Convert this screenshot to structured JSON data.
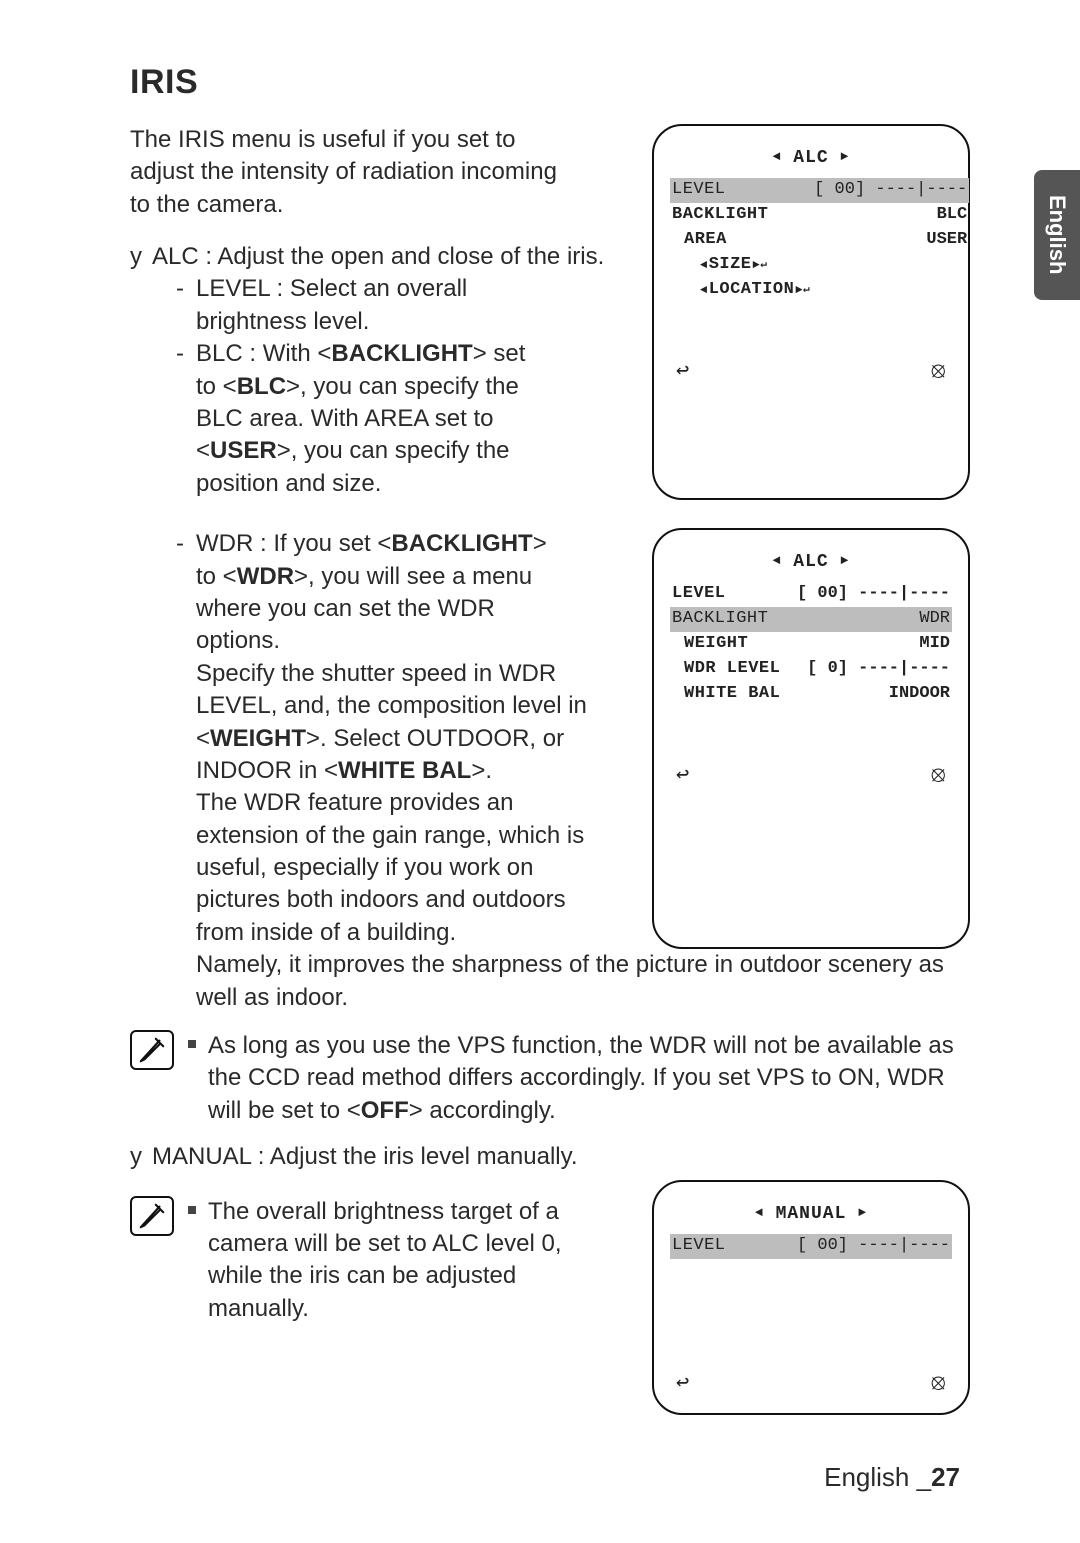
{
  "language_tab": "English",
  "heading": "IRIS",
  "intro": "The IRIS menu is useful if you set to adjust the intensity of radiation incoming to the camera.",
  "alc_bullet": "ALC : Adjust the open and close of the iris.",
  "level_line": "LEVEL : Select an overall brightness level.",
  "blc_line_1": "BLC : With <",
  "blc_bold_1": "BACKLIGHT",
  "blc_line_2": "> set to <",
  "blc_bold_2": "BLC",
  "blc_line_3": ">, you can specify the BLC area. With AREA set to <",
  "blc_bold_3": "USER",
  "blc_line_4": ">, you can specify the position and size.",
  "wdr_line_1": "WDR : If you set <",
  "wdr_bold_1": "BACKLIGHT",
  "wdr_line_2": "> to <",
  "wdr_bold_2": "WDR",
  "wdr_line_3": ">, you will see a menu where you can set the WDR options.",
  "wdr_para_1": "Specify the shutter speed in WDR LEVEL, and, the composition level in <",
  "wdr_bold_3": "WEIGHT",
  "wdr_para_2": ">. Select OUTDOOR, or INDOOR in <",
  "wdr_bold_4": "WHITE BAL",
  "wdr_para_3": ">.",
  "wdr_para_4": "The WDR feature provides an extension of the gain range, which is useful, especially if you work on pictures both indoors and outdoors from inside of a building.",
  "wdr_after": "Namely, it improves the sharpness of the picture in outdoor scenery as well as indoor.",
  "note1_a": "As long as you use the VPS function, the WDR will not be available as the CCD read method differs accordingly. If you set VPS to ON, WDR will be set to <",
  "note1_bold": "OFF",
  "note1_b": "> accordingly.",
  "manual_bullet": "MANUAL : Adjust the iris level manually.",
  "note2": "The overall brightness target of a camera will be set to ALC level 0, while the iris can be adjusted manually.",
  "footer_lang": "English ",
  "footer_page": "_",
  "footer_num": "27",
  "osd1": {
    "title": "ALC",
    "rows": [
      {
        "l": "LEVEL",
        "r": "[  00] ----|----",
        "sel": true,
        "indent": 0,
        "outline": false
      },
      {
        "l": "BACKLIGHT",
        "r": "BLC",
        "sel": false,
        "indent": 0,
        "outline": true
      },
      {
        "l": "AREA",
        "r": "USER",
        "sel": false,
        "indent": 1,
        "outline": true
      },
      {
        "l": "SIZE",
        "r": "",
        "sel": false,
        "indent": 2,
        "outline": true,
        "arrows": true,
        "tail": true
      },
      {
        "l": "LOCATION",
        "r": "",
        "sel": false,
        "indent": 2,
        "outline": true,
        "arrows": true,
        "tail": true
      }
    ]
  },
  "osd2": {
    "title": "ALC",
    "rows": [
      {
        "l": "LEVEL",
        "r": "[  00] ----|----",
        "sel": false,
        "indent": 0,
        "outline": true,
        "slider_outline": true
      },
      {
        "l": "BACKLIGHT",
        "r": "WDR",
        "sel": true,
        "indent": 0,
        "outline": false
      },
      {
        "l": "WEIGHT",
        "r": "MID",
        "sel": false,
        "indent": 1,
        "outline": true
      },
      {
        "l": "WDR LEVEL",
        "r": "[  0] ----|----",
        "sel": false,
        "indent": 1,
        "outline": true,
        "slider_outline": true
      },
      {
        "l": "WHITE BAL",
        "r": "INDOOR",
        "sel": false,
        "indent": 1,
        "outline": true
      }
    ]
  },
  "osd3": {
    "title": "MANUAL",
    "rows": [
      {
        "l": "LEVEL",
        "r": "[  00] ----|----",
        "sel": true,
        "indent": 0,
        "outline": false
      }
    ]
  },
  "icon_back": "↩",
  "icon_close": "⦻"
}
